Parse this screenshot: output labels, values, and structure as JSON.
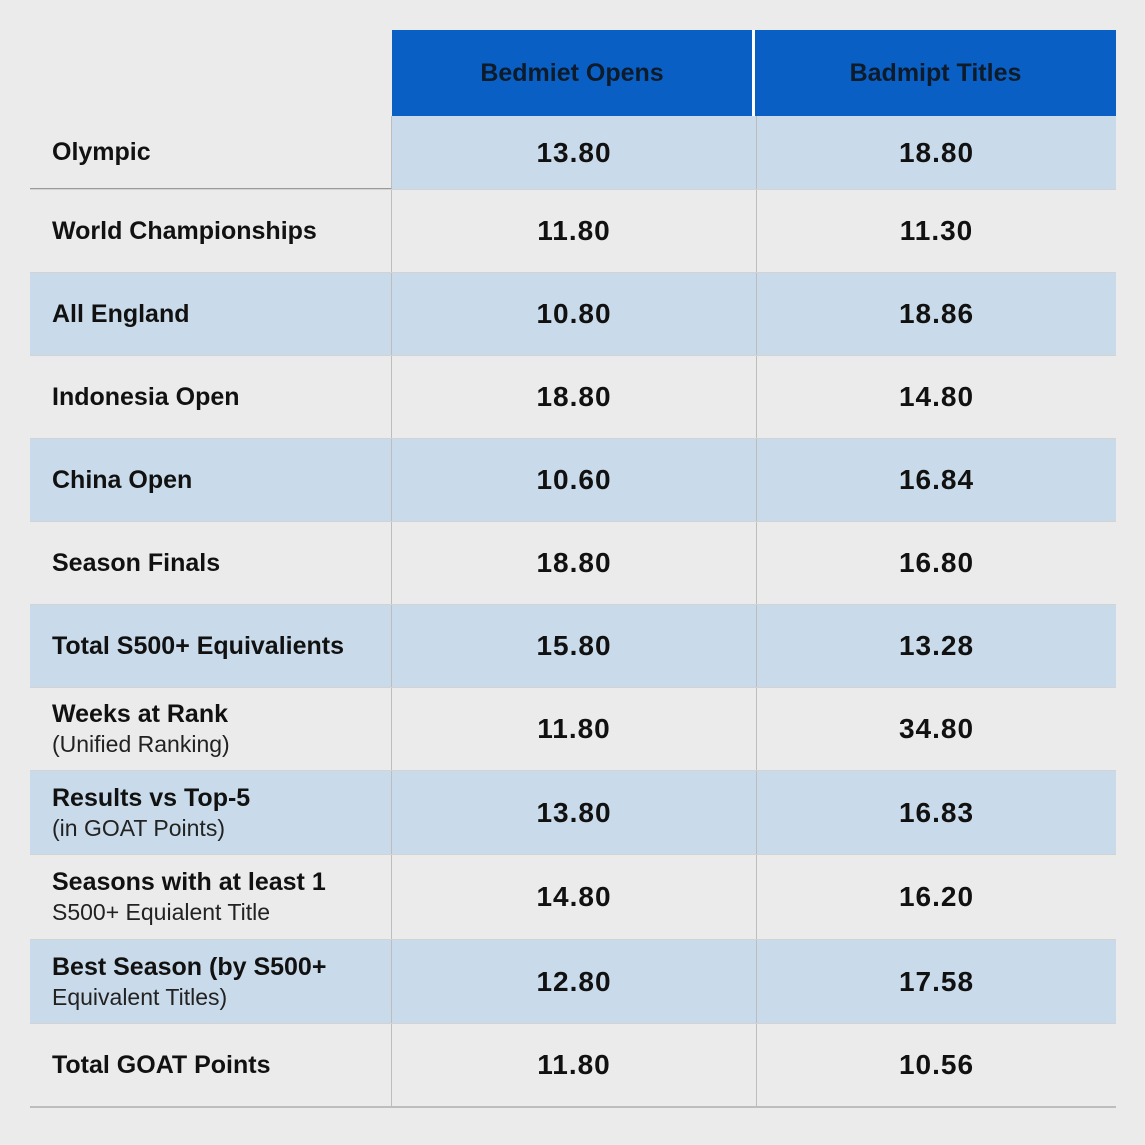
{
  "chart_data": {
    "type": "table",
    "columns": [
      "Bedmiet Opens",
      "Badmipt Titles"
    ],
    "rows": [
      {
        "label": "Olympic",
        "sub": "",
        "values": [
          "13.80",
          "18.80"
        ]
      },
      {
        "label": "World Championships",
        "sub": "",
        "values": [
          "11.80",
          "11.30"
        ]
      },
      {
        "label": "All England",
        "sub": "",
        "values": [
          "10.80",
          "18.86"
        ]
      },
      {
        "label": "Indonesia Open",
        "sub": "",
        "values": [
          "18.80",
          "14.80"
        ]
      },
      {
        "label": "China Open",
        "sub": "",
        "values": [
          "10.60",
          "16.84"
        ]
      },
      {
        "label": "Season Finals",
        "sub": "",
        "values": [
          "18.80",
          "16.80"
        ]
      },
      {
        "label": "Total S500+ Equivalients",
        "sub": "",
        "values": [
          "15.80",
          "13.28"
        ]
      },
      {
        "label": "Weeks at Rank",
        "sub": "(Unified Ranking)",
        "values": [
          "11.80",
          "34.80"
        ]
      },
      {
        "label": "Results vs Top-5",
        "sub": "(in GOAT Points)",
        "values": [
          "13.80",
          "16.83"
        ]
      },
      {
        "label": "Seasons with at least 1",
        "sub": "S500+ Equialent Title",
        "values": [
          "14.80",
          "16.20"
        ]
      },
      {
        "label": "Best Season (by S500+",
        "sub": "Equivalent Titles)",
        "values": [
          "12.80",
          "17.58"
        ]
      },
      {
        "label": "Total GOAT Points",
        "sub": "",
        "values": [
          "11.80",
          "10.56"
        ]
      }
    ]
  },
  "colors": {
    "header_bg": "#0a5fc4",
    "band": "#c9dbea",
    "page_bg": "#ebebeb"
  }
}
